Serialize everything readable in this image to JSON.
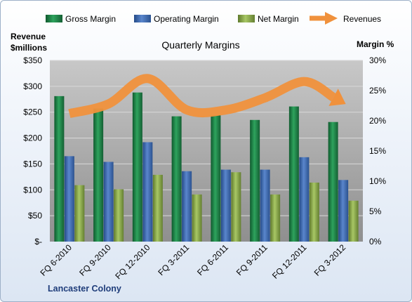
{
  "chart_data": {
    "type": "bar",
    "title": "Quarterly Margins",
    "company": "Lancaster Colony",
    "left_axis": {
      "label_line1": "Revenue",
      "label_line2": "$millions",
      "range": [
        0,
        350
      ],
      "ticks": [
        "$-",
        "$50",
        "$100",
        "$150",
        "$200",
        "$250",
        "$300",
        "$350"
      ]
    },
    "right_axis": {
      "label": "Margin %",
      "range": [
        0,
        30
      ],
      "ticks": [
        "0%",
        "5%",
        "10%",
        "15%",
        "20%",
        "25%",
        "30%"
      ]
    },
    "categories": [
      "FQ 6-2010",
      "FQ 9-2010",
      "FQ 12-2010",
      "FQ 3-2011",
      "FQ 6-2011",
      "FQ 9-2011",
      "FQ 12-2011",
      "FQ 3-2012"
    ],
    "series": [
      {
        "name": "Gross Margin",
        "kind": "bar",
        "axis": "left",
        "color": "#1f8a4c",
        "values": [
          281,
          257,
          288,
          242,
          244,
          235,
          261,
          231
        ]
      },
      {
        "name": "Operating Margin",
        "kind": "bar",
        "axis": "left",
        "color": "#3d68b0",
        "values": [
          165,
          154,
          192,
          136,
          139,
          139,
          163,
          119
        ]
      },
      {
        "name": "Net Margin",
        "kind": "bar",
        "axis": "left",
        "color": "#8fb04e",
        "values": [
          109,
          101,
          129,
          91,
          134,
          91,
          114,
          79
        ]
      },
      {
        "name": "Revenues",
        "kind": "line-arrow",
        "axis": "right",
        "color": "#f0913c",
        "values": [
          21.2,
          22.8,
          27.0,
          21.8,
          21.8,
          23.8,
          26.5,
          23.0
        ]
      }
    ],
    "grid": true,
    "legend_position": "top"
  }
}
